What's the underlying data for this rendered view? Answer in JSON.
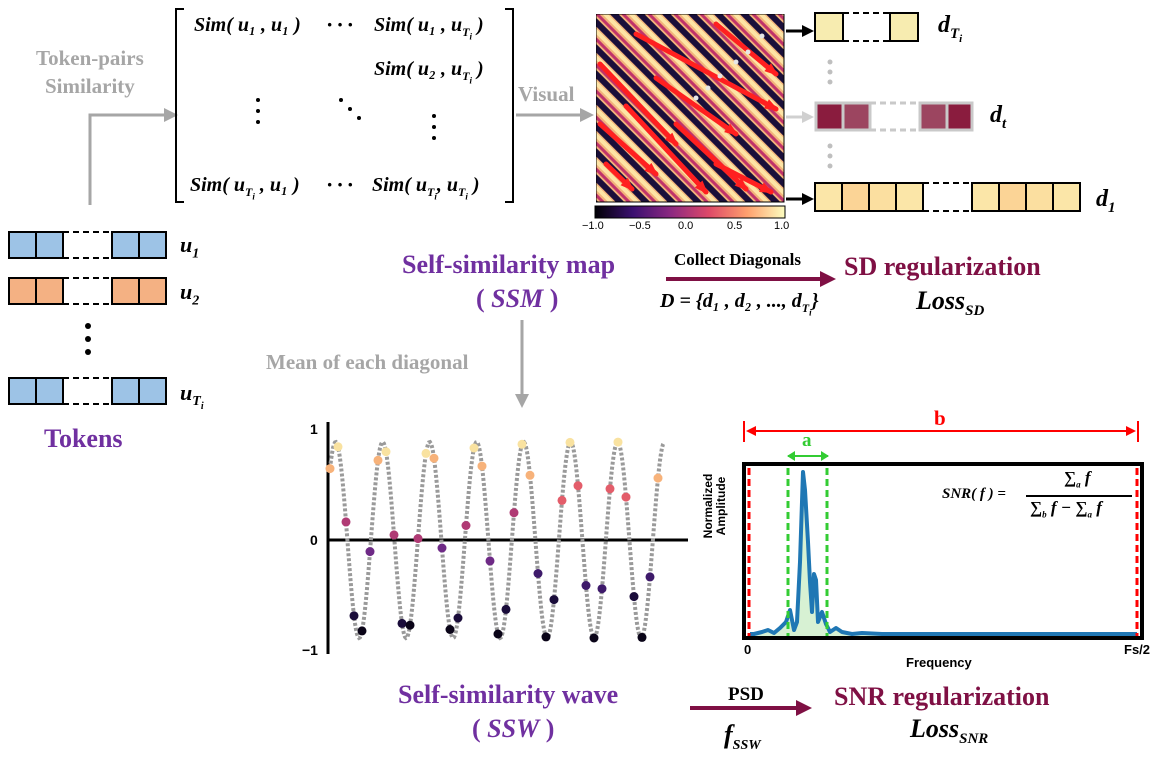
{
  "tokens": {
    "title": "Tokens",
    "labels": [
      {
        "var": "u",
        "sub": "1",
        "subsub": ""
      },
      {
        "var": "u",
        "sub": "2",
        "subsub": ""
      },
      {
        "var": "u",
        "sub": "T",
        "subsub": "i"
      }
    ],
    "colors": {
      "blue": "#9dc3e6",
      "orange": "#f4b183"
    }
  },
  "token_pairs": {
    "line1": "Token-pairs",
    "line2": "Similarity"
  },
  "matrix": {
    "sim": "Sim(",
    "cells": {
      "r1c1": "u₁ , u₁ )",
      "r1c3": "u₁ , u",
      "r2c3": "u₂ , u",
      "r4c1_a": "u",
      "r4c1_b": ", u₁ )",
      "r4c3_a": "u",
      "r4c3_b": ", u"
    },
    "T": "T",
    "i": "i",
    "close": ")"
  },
  "visual_label": "Visual",
  "ssm_map": {
    "colorbar_ticks": [
      "−1.0",
      "−0.5",
      "0.0",
      "0.5",
      "1.0"
    ]
  },
  "diagonals": {
    "dT": {
      "var": "d",
      "sub": "T",
      "subsub": "i"
    },
    "dt": {
      "var": "d",
      "sub": "t"
    },
    "d1": {
      "var": "d",
      "sub": "1"
    }
  },
  "ssm": {
    "title": "Self-similarity map",
    "abbr_open": "( ",
    "abbr": "SSM",
    "abbr_close": " )"
  },
  "collect": {
    "label": "Collect Diagonals",
    "formula": "D = {d₁ , d₂ , ..., d"
  },
  "sd_reg": {
    "title": "SD regularization",
    "loss": "Loss",
    "loss_sub": "SD"
  },
  "mean_label": "Mean of each diagonal",
  "wave_chart": {
    "y_ticks": [
      "1",
      "0",
      "−1"
    ]
  },
  "ssw": {
    "title": "Self-similarity wave",
    "abbr_open": "( ",
    "abbr": "SSW",
    "abbr_close": " )"
  },
  "psd": {
    "label": "PSD",
    "f": "f",
    "f_sub": "SSW"
  },
  "snr_reg": {
    "title": "SNR regularization",
    "loss": "Loss",
    "loss_sub": "SNR"
  },
  "psd_chart": {
    "ylabel_1": "Normalized",
    "ylabel_2": "Amplitude",
    "xlabel": "Frequency",
    "x_start": "0",
    "x_end": "Fs/2",
    "b_label": "b",
    "a_label": "a",
    "snr_lhs": "SNR( f ) =",
    "num": "∑",
    "num_sub": "a",
    "f": "f",
    "den_sub_b": "b",
    "den_sub_a": "a"
  }
}
